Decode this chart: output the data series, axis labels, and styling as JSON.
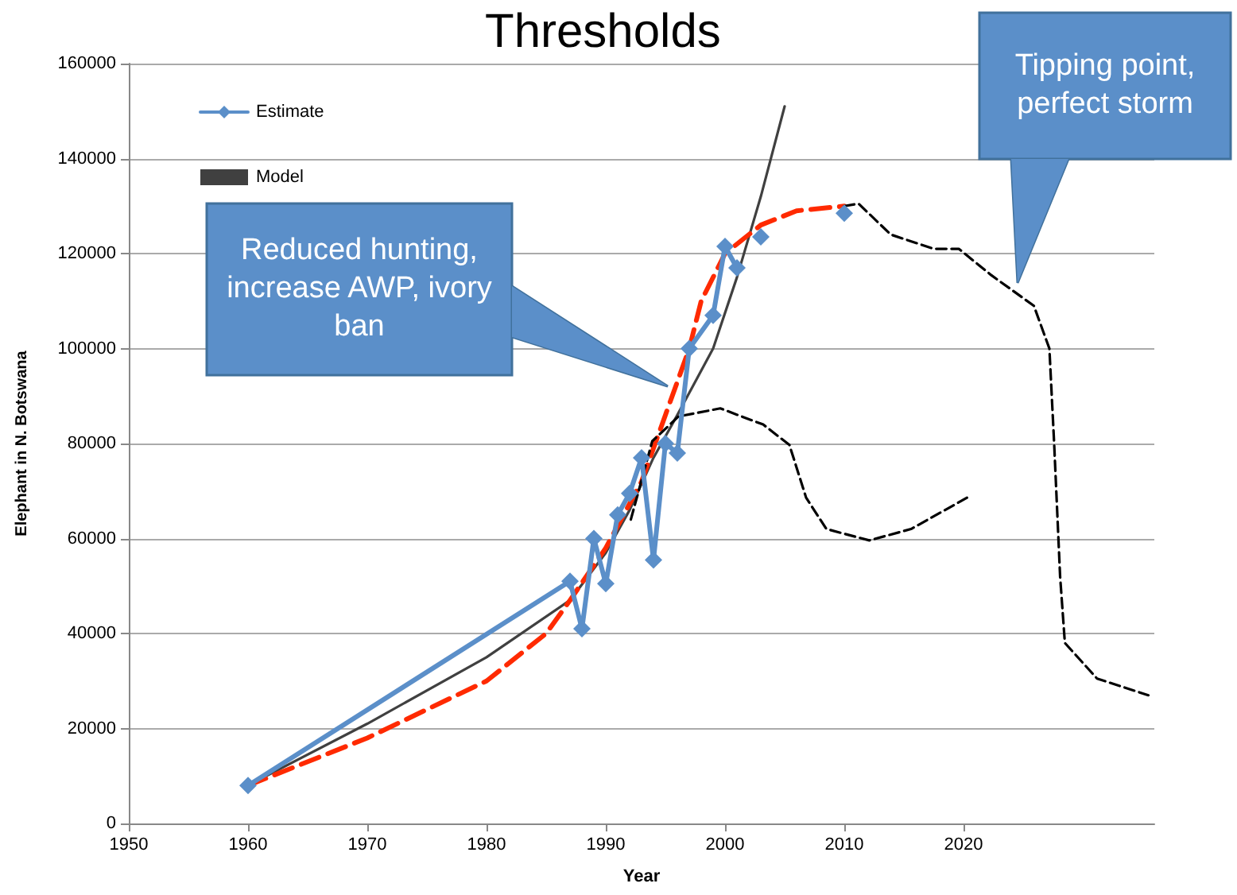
{
  "chart_data": {
    "type": "line",
    "title": "Thresholds",
    "xlabel": "Year",
    "ylabel": "Elephant in N. Botswana",
    "xlim": [
      1950,
      2036
    ],
    "xticks": [
      1950,
      1960,
      1970,
      1980,
      1990,
      2000,
      2010,
      2020
    ],
    "ylim": [
      0,
      160000
    ],
    "yticks": [
      0,
      20000,
      40000,
      60000,
      80000,
      100000,
      120000,
      140000,
      160000
    ],
    "grid": "y",
    "legend": "top left",
    "series": [
      {
        "name": "Estimate",
        "color": "#5b8fc9",
        "marker": "diamond",
        "line_style": "solid",
        "x": [
          1960,
          1987,
          1988,
          1989,
          1990,
          1991,
          1992,
          1993,
          1994,
          1995,
          1996,
          1997,
          1999,
          2000,
          2001,
          2002,
          2003,
          2005,
          2010
        ],
        "values": [
          8000,
          51000,
          41000,
          60000,
          50500,
          65000,
          69500,
          77000,
          55500,
          80000,
          78000,
          100000,
          107000,
          121500,
          117000,
          null,
          123500,
          null,
          128500
        ]
      },
      {
        "name": "Model",
        "color": "#404040",
        "marker": "none",
        "line_style": "solid",
        "x": [
          1960,
          1970,
          1980,
          1987,
          1990,
          1992,
          1994,
          1996,
          1999,
          2001,
          2003,
          2005
        ],
        "values": [
          8000,
          21000,
          35000,
          47000,
          57000,
          66000,
          77000,
          86000,
          100000,
          115000,
          132000,
          151000
        ]
      },
      {
        "color": "#ff2a00",
        "marker": "none",
        "line_style": "dashed",
        "x": [
          1960,
          1970,
          1980,
          1985,
          1987,
          1990,
          1993,
          1995,
          1997,
          1998,
          2000,
          2003,
          2006,
          2010
        ],
        "values": [
          8000,
          18000,
          30000,
          40000,
          47000,
          58000,
          72000,
          86000,
          100000,
          110000,
          120000,
          126000,
          129000,
          130000
        ]
      },
      {
        "color": "#000000",
        "marker": "none",
        "line_style": "dashed",
        "x": [
          2010,
          2011.2,
          2013.9,
          2017.5,
          2019.6,
          2022.3,
          2025.9,
          2027.2,
          2027.6,
          2028.1,
          2028.5,
          2031.2,
          2035.5
        ],
        "values": [
          130000,
          130500,
          124000,
          121000,
          121000,
          115500,
          109000,
          100000,
          80000,
          52000,
          38000,
          30500,
          27000
        ]
      },
      {
        "color": "#000000",
        "marker": "none",
        "line_style": "dashed",
        "x": [
          1992.1,
          1993.9,
          1996.1,
          1999.6,
          2003.2,
          2005.4,
          2006.8,
          2008.5,
          2012.1,
          2015.6,
          2020.3
        ],
        "values": [
          64000,
          80500,
          85700,
          87400,
          84000,
          79700,
          68600,
          62000,
          59600,
          62000,
          68600
        ]
      }
    ],
    "annotations": [
      "Reduced hunting, increase AWP, ivory ban",
      "Tipping point, perfect storm"
    ]
  }
}
